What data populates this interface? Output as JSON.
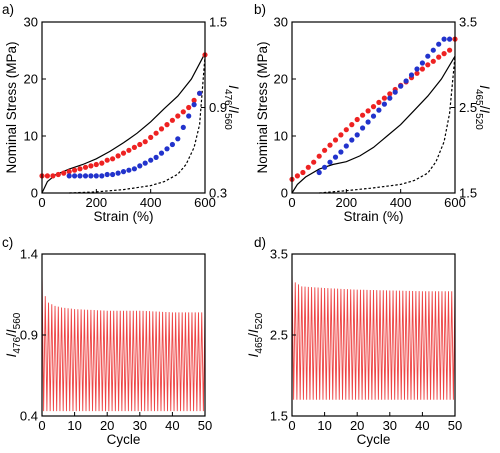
{
  "colors": {
    "red": "#ee2222",
    "blue": "#2233cc",
    "black": "#000000",
    "cycle": "#ee4444"
  },
  "chart_data": [
    {
      "panel": "a)",
      "type": "scatter",
      "xlabel": "Strain (%)",
      "ylabel": "Nominal Stress (MPa)",
      "y2label": "I476/I560",
      "xlim": [
        0,
        600
      ],
      "ylim": [
        0,
        30
      ],
      "y2lim": [
        0.3,
        1.5
      ],
      "xticks": [
        0,
        200,
        400,
        600
      ],
      "yticks": [
        0,
        10,
        20,
        30
      ],
      "y2ticks": [
        0.3,
        0.9,
        1.5
      ],
      "series": [
        {
          "kind": "line",
          "style": "solid",
          "axis": "left",
          "x": [
            0,
            20,
            50,
            100,
            150,
            200,
            250,
            300,
            350,
            400,
            450,
            500,
            550,
            600
          ],
          "y": [
            0,
            2,
            3.2,
            4.2,
            5.0,
            6.0,
            7.3,
            8.8,
            10.5,
            12.5,
            14.8,
            17.0,
            20.0,
            24.5
          ]
        },
        {
          "kind": "line",
          "style": "dashed",
          "axis": "left",
          "x": [
            100,
            200,
            300,
            400,
            450,
            500,
            530,
            560,
            580,
            600
          ],
          "y": [
            0,
            0.2,
            0.6,
            1.3,
            2.0,
            3.3,
            5.0,
            8.0,
            12.0,
            24.0
          ]
        },
        {
          "kind": "scatter",
          "color": "red",
          "axis": "right",
          "x": [
            0,
            20,
            40,
            60,
            80,
            100,
            120,
            140,
            160,
            180,
            200,
            220,
            240,
            260,
            280,
            300,
            320,
            340,
            360,
            380,
            400,
            420,
            440,
            460,
            480,
            500,
            520,
            540,
            560,
            580,
            600
          ],
          "y": [
            0.42,
            0.42,
            0.42,
            0.43,
            0.44,
            0.45,
            0.46,
            0.47,
            0.48,
            0.49,
            0.5,
            0.51,
            0.53,
            0.54,
            0.56,
            0.58,
            0.6,
            0.62,
            0.64,
            0.66,
            0.69,
            0.72,
            0.75,
            0.78,
            0.81,
            0.84,
            0.87,
            0.9,
            0.95,
            1.0,
            1.27
          ]
        },
        {
          "kind": "scatter",
          "color": "blue",
          "axis": "right",
          "x": [
            100,
            120,
            140,
            160,
            180,
            200,
            220,
            240,
            260,
            280,
            300,
            320,
            340,
            360,
            380,
            400,
            420,
            440,
            460,
            480,
            500,
            520,
            540,
            560,
            580
          ],
          "y": [
            0.42,
            0.42,
            0.42,
            0.42,
            0.42,
            0.42,
            0.42,
            0.43,
            0.43,
            0.44,
            0.45,
            0.46,
            0.47,
            0.49,
            0.51,
            0.53,
            0.55,
            0.58,
            0.61,
            0.64,
            0.68,
            0.76,
            0.84,
            0.92,
            1.0
          ]
        }
      ]
    },
    {
      "panel": "b)",
      "type": "scatter",
      "xlabel": "Strain (%)",
      "ylabel": "Nominal Stress (MPa)",
      "y2label": "I465/I520",
      "xlim": [
        0,
        600
      ],
      "ylim": [
        0,
        30
      ],
      "y2lim": [
        1.5,
        3.5
      ],
      "xticks": [
        0,
        200,
        400,
        600
      ],
      "yticks": [
        0,
        10,
        20,
        30
      ],
      "y2ticks": [
        1.5,
        2.5,
        3.5
      ],
      "series": [
        {
          "kind": "line",
          "style": "solid",
          "axis": "left",
          "x": [
            0,
            20,
            50,
            100,
            150,
            200,
            250,
            300,
            350,
            400,
            450,
            500,
            550,
            600
          ],
          "y": [
            0,
            1.5,
            2.8,
            4.2,
            5.0,
            5.5,
            6.5,
            8.0,
            10.0,
            12.0,
            14.5,
            17.0,
            20.0,
            24.0
          ]
        },
        {
          "kind": "line",
          "style": "dashed",
          "axis": "left",
          "x": [
            100,
            200,
            300,
            400,
            450,
            500,
            530,
            560,
            580,
            600
          ],
          "y": [
            0,
            0.4,
            0.9,
            1.5,
            2.2,
            3.5,
            5.5,
            9.0,
            14.0,
            24.0
          ]
        },
        {
          "kind": "scatter",
          "color": "red",
          "axis": "right",
          "x": [
            0,
            20,
            40,
            60,
            80,
            100,
            120,
            140,
            160,
            180,
            200,
            220,
            240,
            260,
            280,
            300,
            320,
            340,
            360,
            380,
            400,
            420,
            440,
            460,
            480,
            500,
            520,
            540,
            560,
            580,
            600
          ],
          "y": [
            1.66,
            1.7,
            1.74,
            1.8,
            1.86,
            1.93,
            2.0,
            2.06,
            2.12,
            2.18,
            2.24,
            2.3,
            2.36,
            2.41,
            2.46,
            2.51,
            2.56,
            2.61,
            2.66,
            2.71,
            2.76,
            2.8,
            2.85,
            2.9,
            2.95,
            3.0,
            3.04,
            3.09,
            3.13,
            3.17,
            3.3
          ]
        },
        {
          "kind": "scatter",
          "color": "blue",
          "axis": "right",
          "x": [
            100,
            120,
            140,
            160,
            180,
            200,
            220,
            240,
            260,
            280,
            300,
            320,
            340,
            360,
            380,
            400,
            420,
            440,
            460,
            480,
            500,
            520,
            540,
            560,
            580
          ],
          "y": [
            1.74,
            1.8,
            1.86,
            1.92,
            1.98,
            2.05,
            2.12,
            2.18,
            2.26,
            2.33,
            2.4,
            2.47,
            2.54,
            2.61,
            2.68,
            2.75,
            2.81,
            2.88,
            2.95,
            3.02,
            3.1,
            3.17,
            3.24,
            3.3,
            3.3
          ]
        }
      ]
    },
    {
      "panel": "c)",
      "type": "line",
      "xlabel": "Cycle",
      "ylabel": "I476/I560",
      "xlim": [
        0,
        50
      ],
      "ylim": [
        0.4,
        1.4
      ],
      "xticks": [
        0,
        10,
        20,
        30,
        40,
        50
      ],
      "yticks": [
        0.4,
        0.9,
        1.4
      ],
      "cycles": 50,
      "min_value": 0.43,
      "max_envelope": [
        [
          0,
          1.29
        ],
        [
          1,
          1.14
        ],
        [
          2,
          1.1
        ],
        [
          4,
          1.08
        ],
        [
          6,
          1.07
        ],
        [
          10,
          1.06
        ],
        [
          20,
          1.05
        ],
        [
          30,
          1.05
        ],
        [
          40,
          1.04
        ],
        [
          50,
          1.04
        ]
      ]
    },
    {
      "panel": "d)",
      "type": "line",
      "xlabel": "Cycle",
      "ylabel": "I465/I520",
      "xlim": [
        0,
        50
      ],
      "ylim": [
        1.5,
        3.5
      ],
      "xticks": [
        0,
        10,
        20,
        30,
        40,
        50
      ],
      "yticks": [
        1.5,
        2.5,
        3.5
      ],
      "cycles": 50,
      "min_value": 1.7,
      "max_envelope": [
        [
          0,
          3.3
        ],
        [
          1,
          3.15
        ],
        [
          3,
          3.1
        ],
        [
          10,
          3.08
        ],
        [
          20,
          3.06
        ],
        [
          30,
          3.05
        ],
        [
          40,
          3.04
        ],
        [
          50,
          3.04
        ]
      ]
    }
  ]
}
